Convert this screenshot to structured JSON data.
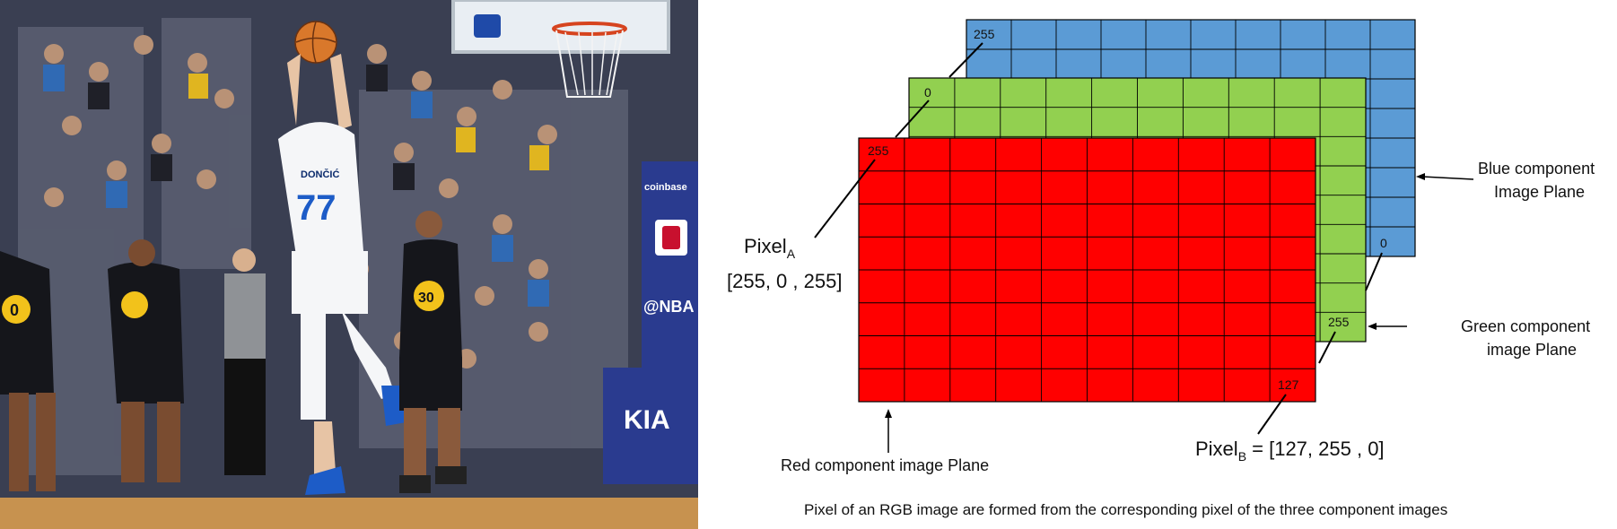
{
  "photo": {
    "jersey_front": "77",
    "jersey_name": "DONČIĆ",
    "jersey_defender": "30",
    "jersey_left": "0",
    "courtside_brand": "coinbase",
    "courtside_handle": "@NBA",
    "floor_brand": "KIA"
  },
  "planes": {
    "blue": {
      "color": "#5b9bd5",
      "corner_value": "255",
      "edge_value": "0"
    },
    "green": {
      "color": "#92d050",
      "corner_value": "0",
      "edge_value": "255"
    },
    "red": {
      "color": "#ff0000",
      "corner_value": "255",
      "edge_value": "127"
    }
  },
  "labels": {
    "pixel_a_main": "Pixel",
    "pixel_a_sub": "A",
    "pixel_a_value": "[255, 0 , 255]",
    "pixel_b_main": "Pixel",
    "pixel_b_sub": "B",
    "pixel_b_value": " = [127, 255 , 0]",
    "blue_plane_line1": "Blue component",
    "blue_plane_line2": "Image  Plane",
    "green_plane_line1": "Green component",
    "green_plane_line2": "image Plane",
    "red_plane": "Red component image Plane",
    "caption": "Pixel of an RGB image are formed from the corresponding pixel of the three component images"
  }
}
